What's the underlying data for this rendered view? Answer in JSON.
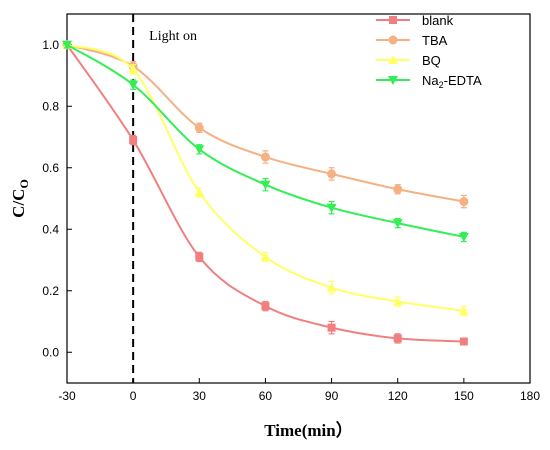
{
  "chart_data": {
    "type": "line",
    "xlabel": "Time(min）",
    "ylabel_main": "C/C",
    "ylabel_sub": "O",
    "xlim": [
      -30,
      180
    ],
    "ylim": [
      -0.1,
      1.1
    ],
    "x_ticks": [
      -30,
      0,
      30,
      60,
      90,
      120,
      150,
      180
    ],
    "x_tick_labels": [
      "-30",
      "0",
      "30",
      "60",
      "90",
      "120",
      "150",
      "180"
    ],
    "y_ticks": [
      0.0,
      0.2,
      0.4,
      0.6,
      0.8,
      1.0
    ],
    "y_tick_labels": [
      "0.0",
      "0.2",
      "0.4",
      "0.6",
      "0.8",
      "1.0"
    ],
    "annotation": {
      "text": "Light on",
      "x": 0
    },
    "legend_position": "top-right",
    "x": [
      -30,
      0,
      30,
      60,
      90,
      120,
      150
    ],
    "series": [
      {
        "name": "blank",
        "marker": "square",
        "color": "#f08080",
        "values": [
          1.0,
          0.69,
          0.31,
          0.15,
          0.08,
          0.045,
          0.035
        ],
        "errors": [
          0.01,
          0.015,
          0.015,
          0.015,
          0.02,
          0.015,
          0.01
        ]
      },
      {
        "name": "TBA",
        "marker": "circle",
        "color": "#f4b183",
        "values": [
          1.0,
          0.93,
          0.73,
          0.635,
          0.58,
          0.53,
          0.49
        ],
        "errors": [
          0.01,
          0.015,
          0.015,
          0.02,
          0.02,
          0.015,
          0.02
        ]
      },
      {
        "name": "BQ",
        "marker": "triangle-up",
        "color": "#ffff66",
        "values": [
          1.0,
          0.92,
          0.52,
          0.31,
          0.21,
          0.165,
          0.135
        ],
        "errors": [
          0.01,
          0.015,
          0.015,
          0.015,
          0.02,
          0.015,
          0.015
        ]
      },
      {
        "name_main": "Na",
        "name_sub": "2",
        "name_rest": "-EDTA",
        "marker": "triangle-down",
        "color": "#33ee55",
        "values": [
          1.0,
          0.87,
          0.66,
          0.545,
          0.47,
          0.42,
          0.375
        ],
        "errors": [
          0.01,
          0.015,
          0.015,
          0.02,
          0.02,
          0.015,
          0.015
        ]
      }
    ]
  }
}
